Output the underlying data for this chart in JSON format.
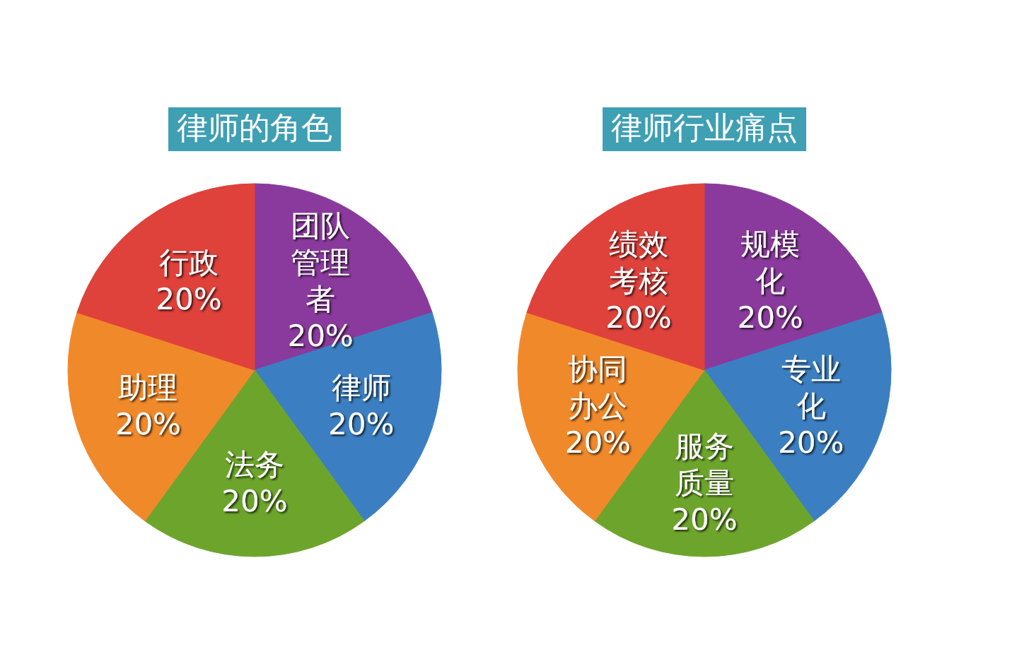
{
  "chart_data": [
    {
      "type": "pie",
      "title": "律师的角色",
      "categories": [
        "团队管理者",
        "律师",
        "法务",
        "助理",
        "行政"
      ],
      "values": [
        20,
        20,
        20,
        20,
        20
      ],
      "value_labels": [
        "20%",
        "20%",
        "20%",
        "20%",
        "20%"
      ],
      "colors": [
        "#8a3a9c",
        "#3b7fc2",
        "#6da52c",
        "#f0892a",
        "#df413b"
      ]
    },
    {
      "type": "pie",
      "title": "律师行业痛点",
      "categories": [
        "规模化",
        "专业化",
        "服务质量",
        "协同办公",
        "绩效考核"
      ],
      "values": [
        20,
        20,
        20,
        20,
        20
      ],
      "value_labels": [
        "20%",
        "20%",
        "20%",
        "20%",
        "20%"
      ],
      "colors": [
        "#8a3a9c",
        "#3b7fc2",
        "#6da52c",
        "#f0892a",
        "#df413b"
      ]
    }
  ]
}
